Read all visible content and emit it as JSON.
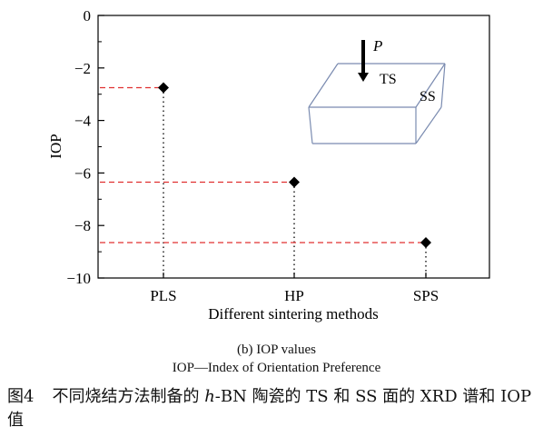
{
  "chart_data": {
    "type": "scatter",
    "categories": [
      "PLS",
      "HP",
      "SPS"
    ],
    "values": [
      -2.75,
      -6.35,
      -8.65
    ],
    "xlabel": "Different sintering methods",
    "ylabel": "IOP",
    "ylim": [
      -10,
      0
    ],
    "yticks": [
      0,
      -2,
      -4,
      -6,
      -8,
      -10
    ],
    "ytick_labels": [
      "0",
      "−2",
      "−4",
      "−6",
      "−8",
      "−10"
    ],
    "grid": false,
    "marker": "diamond",
    "marker_color": "#000000",
    "guide_line_color": "#e03030",
    "drop_line_color": "#000000",
    "inset": {
      "force_label": "P",
      "top_face_label": "TS",
      "side_face_label": "SS",
      "box_color": "#7a8bb0"
    }
  },
  "captions": {
    "subcaption": "(b) IOP values",
    "note": "IOP—Index of Orientation Preference",
    "figure_number": "图4",
    "figure_title_pre": "不同烧结方法制备的 ",
    "figure_title_italic": "h",
    "figure_title_post": "-BN 陶瓷的 TS 和 SS 面的 XRD 谱和 IOP 值"
  }
}
